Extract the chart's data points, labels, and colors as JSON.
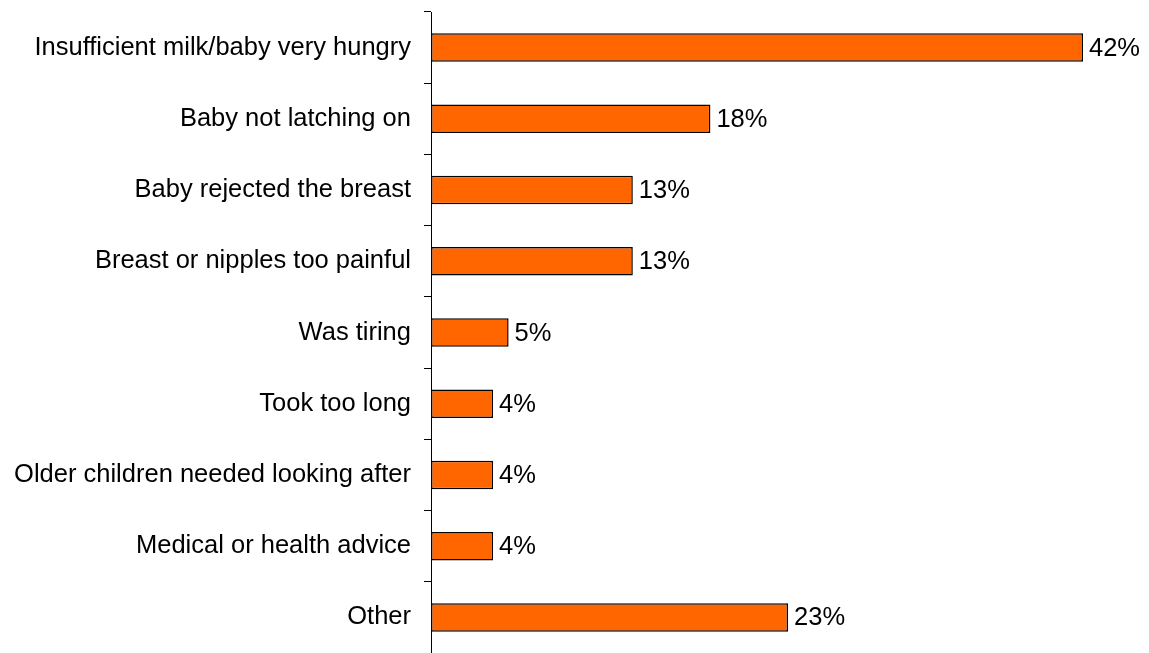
{
  "chart_data": {
    "type": "bar",
    "orientation": "horizontal",
    "categories": [
      "Insufficient milk/baby very hungry",
      "Baby not latching on",
      "Baby rejected the breast",
      "Breast or nipples too painful",
      "Was tiring",
      "Took too long",
      "Older children needed looking after",
      "Medical or health advice",
      "Other"
    ],
    "values": [
      42,
      18,
      13,
      13,
      5,
      4,
      4,
      4,
      23
    ],
    "value_labels": [
      "42%",
      "18%",
      "13%",
      "13%",
      "5%",
      "4%",
      "4%",
      "4%",
      "23%"
    ],
    "color": "#ff6600"
  }
}
